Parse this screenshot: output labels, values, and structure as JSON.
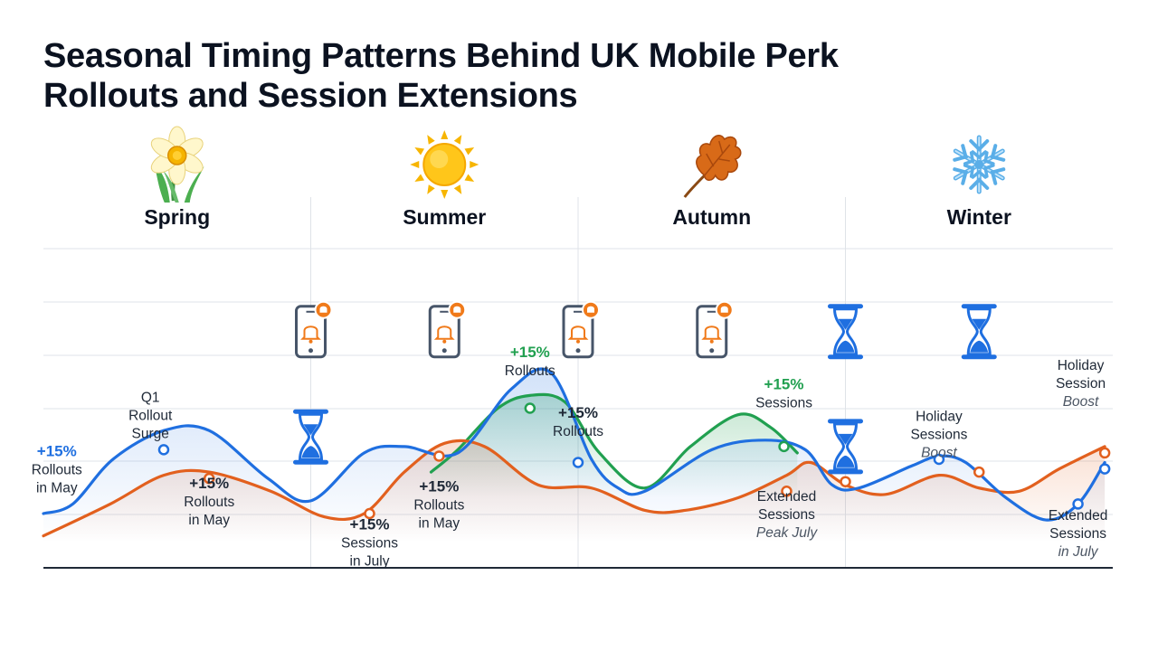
{
  "title_line1": "Seasonal Timing Patterns Behind UK Mobile Perk",
  "title_line2": "Rollouts and Session Extensions",
  "seasons": [
    {
      "name": "Spring",
      "icon": "daffodil-icon"
    },
    {
      "name": "Summer",
      "icon": "sun-icon"
    },
    {
      "name": "Autumn",
      "icon": "oak-leaf-icon"
    },
    {
      "name": "Winter",
      "icon": "snowflake-icon"
    }
  ],
  "colors": {
    "blue": "#1f6fe0",
    "orange": "#e2601e",
    "green": "#21a050",
    "grid": "#dfe3e8",
    "icon_dark": "#475569",
    "icon_accent": "#f07a1a"
  },
  "icons": [
    {
      "type": "phone-alert-icon",
      "x": 1.0,
      "y": 74
    },
    {
      "type": "hourglass-icon",
      "x": 1.0,
      "y": 41
    },
    {
      "type": "phone-alert-icon",
      "x": 1.5,
      "y": 74
    },
    {
      "type": "phone-alert-icon",
      "x": 2.0,
      "y": 74
    },
    {
      "type": "phone-alert-icon",
      "x": 2.5,
      "y": 74
    },
    {
      "type": "hourglass-icon",
      "x": 3.0,
      "y": 74
    },
    {
      "type": "hourglass-icon",
      "x": 3.0,
      "y": 38
    },
    {
      "type": "hourglass-icon",
      "x": 3.5,
      "y": 74
    }
  ],
  "chart_data": {
    "type": "line",
    "x_range": [
      0,
      4
    ],
    "y_range": [
      0,
      100
    ],
    "grid": true,
    "series": [
      {
        "key": "blue",
        "points": [
          [
            0,
            17
          ],
          [
            0.11,
            20
          ],
          [
            0.26,
            34
          ],
          [
            0.45,
            43
          ],
          [
            0.62,
            43
          ],
          [
            0.84,
            28
          ],
          [
            1.0,
            21
          ],
          [
            1.2,
            36
          ],
          [
            1.35,
            38
          ],
          [
            1.55,
            36
          ],
          [
            1.75,
            56
          ],
          [
            1.9,
            61
          ],
          [
            2.05,
            34
          ],
          [
            2.15,
            25
          ],
          [
            2.25,
            24
          ],
          [
            2.5,
            37
          ],
          [
            2.7,
            40
          ],
          [
            2.85,
            37
          ],
          [
            2.95,
            26
          ],
          [
            3.05,
            25
          ],
          [
            3.25,
            32
          ],
          [
            3.35,
            35
          ],
          [
            3.45,
            33
          ],
          [
            3.6,
            22
          ],
          [
            3.75,
            15
          ],
          [
            3.87,
            20
          ],
          [
            3.97,
            33
          ]
        ]
      },
      {
        "key": "orange",
        "points": [
          [
            0,
            10
          ],
          [
            0.25,
            20
          ],
          [
            0.45,
            29
          ],
          [
            0.62,
            30
          ],
          [
            0.85,
            24
          ],
          [
            1.05,
            16
          ],
          [
            1.2,
            17
          ],
          [
            1.35,
            30
          ],
          [
            1.5,
            39
          ],
          [
            1.65,
            38
          ],
          [
            1.85,
            26
          ],
          [
            2.05,
            25
          ],
          [
            2.25,
            18
          ],
          [
            2.4,
            18
          ],
          [
            2.6,
            22
          ],
          [
            2.78,
            29
          ],
          [
            2.87,
            33
          ],
          [
            3.0,
            26
          ],
          [
            3.15,
            23
          ],
          [
            3.35,
            29
          ],
          [
            3.5,
            25
          ],
          [
            3.65,
            24
          ],
          [
            3.8,
            31
          ],
          [
            3.97,
            38
          ]
        ]
      },
      {
        "key": "green",
        "points": [
          [
            1.45,
            30
          ],
          [
            1.55,
            37
          ],
          [
            1.7,
            50
          ],
          [
            1.82,
            54
          ],
          [
            1.95,
            52
          ],
          [
            2.08,
            36
          ],
          [
            2.25,
            25
          ],
          [
            2.42,
            38
          ],
          [
            2.6,
            48
          ],
          [
            2.72,
            44
          ],
          [
            2.82,
            36
          ]
        ]
      }
    ],
    "markers": [
      {
        "series": "blue",
        "x": 0.45,
        "y": 37
      },
      {
        "series": "blue",
        "x": 2.0,
        "y": 33
      },
      {
        "series": "blue",
        "x": 3.35,
        "y": 34
      },
      {
        "series": "blue",
        "x": 3.87,
        "y": 20
      },
      {
        "series": "blue",
        "x": 3.97,
        "y": 31
      },
      {
        "series": "orange",
        "x": 0.62,
        "y": 28
      },
      {
        "series": "orange",
        "x": 1.22,
        "y": 17
      },
      {
        "series": "orange",
        "x": 1.48,
        "y": 35
      },
      {
        "series": "orange",
        "x": 2.78,
        "y": 24
      },
      {
        "series": "orange",
        "x": 3.0,
        "y": 27
      },
      {
        "series": "orange",
        "x": 3.5,
        "y": 30
      },
      {
        "series": "orange",
        "x": 3.97,
        "y": 36
      },
      {
        "series": "green",
        "x": 1.82,
        "y": 50
      },
      {
        "series": "green",
        "x": 2.77,
        "y": 38
      }
    ],
    "annotations": [
      {
        "x": 0.4,
        "y": 52,
        "lines": [
          {
            "t": "Q1"
          },
          {
            "t": "Rollout"
          },
          {
            "t": "Surge"
          }
        ]
      },
      {
        "x": 0.05,
        "y": 35,
        "lines": [
          {
            "t": "+15%",
            "bold": true,
            "color": "blue"
          },
          {
            "t": "Rollouts"
          },
          {
            "t": "in May"
          }
        ]
      },
      {
        "x": 0.62,
        "y": 25,
        "lines": [
          {
            "t": "+15%",
            "bold": true
          },
          {
            "t": "Rollouts"
          },
          {
            "t": "in May"
          }
        ]
      },
      {
        "x": 1.22,
        "y": 12,
        "lines": [
          {
            "t": "+15%",
            "bold": true
          },
          {
            "t": "Sessions"
          },
          {
            "t": "in July"
          }
        ]
      },
      {
        "x": 1.48,
        "y": 24,
        "lines": [
          {
            "t": "+15%",
            "bold": true
          },
          {
            "t": "Rollouts"
          },
          {
            "t": "in May"
          }
        ]
      },
      {
        "x": 1.82,
        "y": 66,
        "lines": [
          {
            "t": "+15%",
            "bold": true,
            "color": "green"
          },
          {
            "t": "Rollouts"
          }
        ]
      },
      {
        "x": 2.0,
        "y": 47,
        "lines": [
          {
            "t": "+15%",
            "bold": true
          },
          {
            "t": "Rollouts"
          }
        ]
      },
      {
        "x": 2.77,
        "y": 56,
        "lines": [
          {
            "t": "+15%",
            "bold": true,
            "color": "green"
          },
          {
            "t": "Sessions"
          }
        ]
      },
      {
        "x": 2.78,
        "y": 21,
        "lines": [
          {
            "t": "Extended"
          },
          {
            "t": "Sessions"
          },
          {
            "t": "Peak July",
            "italic": true
          }
        ]
      },
      {
        "x": 3.35,
        "y": 46,
        "lines": [
          {
            "t": "Holiday"
          },
          {
            "t": "Sessions"
          },
          {
            "t": "Boost",
            "italic": true
          }
        ]
      },
      {
        "x": 3.88,
        "y": 62,
        "lines": [
          {
            "t": "Holiday"
          },
          {
            "t": "Session"
          },
          {
            "t": "Boost",
            "italic": true
          }
        ]
      },
      {
        "x": 3.87,
        "y": 15,
        "lines": [
          {
            "t": "Extended"
          },
          {
            "t": "Sessions"
          },
          {
            "t": "in July",
            "italic": true
          }
        ]
      }
    ]
  }
}
